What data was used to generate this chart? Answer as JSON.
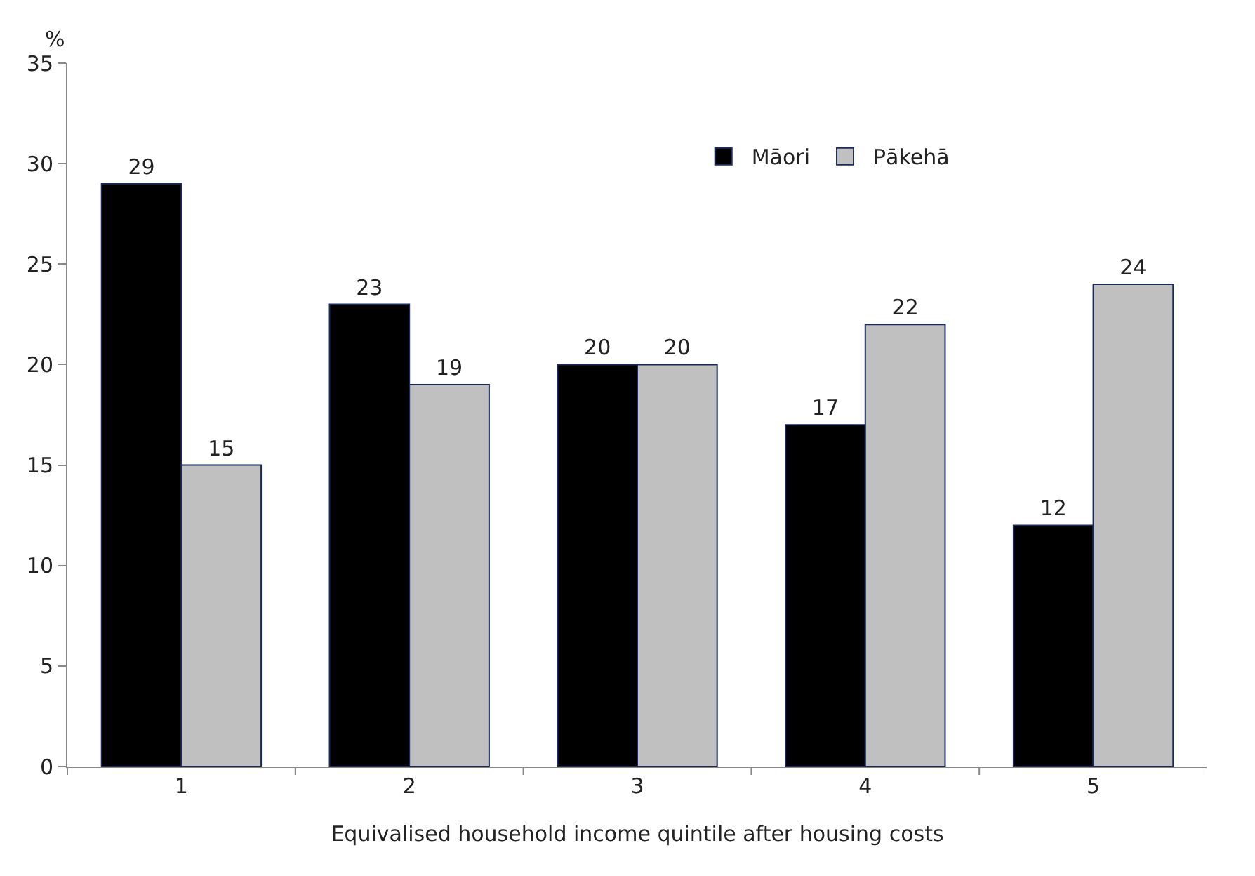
{
  "chart_data": {
    "type": "bar",
    "xlabel": "Equivalised household income quintile after housing costs",
    "ylabel": "%",
    "categories": [
      "1",
      "2",
      "3",
      "4",
      "5"
    ],
    "series": [
      {
        "name": "Māori",
        "color": "#000000",
        "values": [
          29,
          23,
          20,
          17,
          12
        ]
      },
      {
        "name": "Pākehā",
        "color": "#c0c0c0",
        "values": [
          15,
          19,
          20,
          22,
          24
        ]
      }
    ],
    "ylim": [
      0,
      35
    ],
    "yticks": [
      0,
      5,
      10,
      15,
      20,
      25,
      30,
      35
    ],
    "grid": false,
    "legend": "top right",
    "data_labels": true
  }
}
